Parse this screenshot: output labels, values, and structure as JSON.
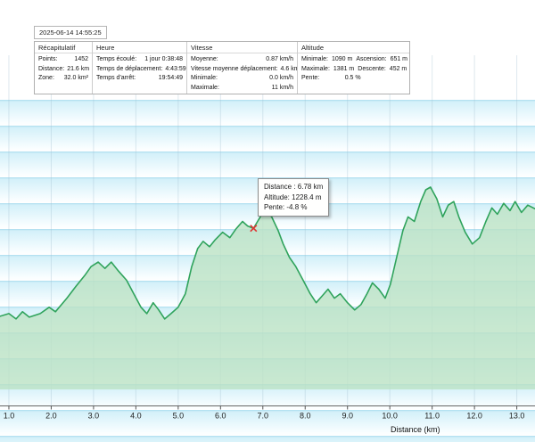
{
  "header": {
    "timestamp": "2025-06-14 14:55:25"
  },
  "panel": {
    "sections": [
      {
        "title": "Récapitulatif",
        "rows": [
          [
            "Points:",
            "1452"
          ],
          [
            "Distance:",
            "21.6 km"
          ],
          [
            "Zone:",
            "32.0 km²"
          ]
        ]
      },
      {
        "title": "Heure",
        "rows": [
          [
            "Temps écoulé:",
            "1 jour 0:38:48"
          ],
          [
            "Temps de déplacement:",
            "4:43:59"
          ],
          [
            "Temps d'arrêt:",
            "19:54:49"
          ]
        ]
      },
      {
        "title": "Vitesse",
        "rows": [
          [
            "Moyenne:",
            "0.87 km/h"
          ],
          [
            "Vitesse moyenne déplacement:",
            "4.6 km/h"
          ],
          [
            "Minimale:",
            "0.0 km/h"
          ],
          [
            "Maximale:",
            "11 km/h"
          ]
        ]
      },
      {
        "title": "Altitude",
        "rows": [
          [
            "Minimale:",
            "1090 m",
            "Ascension:",
            "651 m"
          ],
          [
            "Maximale:",
            "1381 m",
            "Descente:",
            "452 m"
          ],
          [
            "Pente:",
            "0.5 %",
            "",
            ""
          ]
        ]
      }
    ]
  },
  "tooltip": {
    "distance": "Distance : 6.78 km",
    "altitude": "Altitude: 1228.4 m",
    "slope": "Pente: -4.8 %",
    "marker_color": "#e03232"
  },
  "chart_data": {
    "type": "area",
    "title": "",
    "xlabel": "Distance  (km)",
    "ylabel": "",
    "x_ticks": [
      "1.0",
      "2.0",
      "3.0",
      "4.0",
      "5.0",
      "6.0",
      "7.0",
      "8.0",
      "9.0",
      "10.0",
      "11.0",
      "12.0",
      "13.0"
    ],
    "xlim": [
      0.79,
      13.43
    ],
    "ylim": [
      1050,
      1420
    ],
    "grid": true,
    "legend": "none",
    "line_color": "#2fa35c",
    "fill_color": "rgba(187,226,196,0.8)",
    "grid_color": "rgba(160,190,205,0.35)",
    "axis_color": "#666666",
    "marker": {
      "x": 6.78,
      "y": 1228.4
    },
    "series": [
      {
        "name": "Altitude (m)",
        "x": [
          0.79,
          1.0,
          1.17,
          1.32,
          1.48,
          1.74,
          1.95,
          2.1,
          2.37,
          2.58,
          2.79,
          2.94,
          3.11,
          3.27,
          3.42,
          3.59,
          3.78,
          3.95,
          4.12,
          4.26,
          4.41,
          4.54,
          4.68,
          4.83,
          5.0,
          5.17,
          5.32,
          5.46,
          5.59,
          5.74,
          5.88,
          6.05,
          6.22,
          6.37,
          6.52,
          6.64,
          6.78,
          6.94,
          7.06,
          7.21,
          7.36,
          7.48,
          7.63,
          7.78,
          7.95,
          8.12,
          8.26,
          8.41,
          8.54,
          8.69,
          8.83,
          9.0,
          9.17,
          9.32,
          9.46,
          9.59,
          9.74,
          9.89,
          10.01,
          10.16,
          10.31,
          10.43,
          10.58,
          10.73,
          10.85,
          10.96,
          11.11,
          11.25,
          11.38,
          11.51,
          11.63,
          11.78,
          11.95,
          12.12,
          12.27,
          12.41,
          12.54,
          12.69,
          12.84,
          12.96,
          13.11,
          13.26,
          13.43
        ],
        "y": [
          1131,
          1134,
          1128,
          1136,
          1130,
          1134,
          1141,
          1136,
          1151,
          1164,
          1176,
          1186,
          1191,
          1184,
          1191,
          1181,
          1171,
          1156,
          1141,
          1134,
          1146,
          1138,
          1128,
          1134,
          1141,
          1156,
          1186,
          1206,
          1214,
          1208,
          1216,
          1224,
          1218,
          1228,
          1236,
          1231,
          1228.4,
          1241,
          1248,
          1241,
          1226,
          1211,
          1196,
          1186,
          1171,
          1156,
          1146,
          1154,
          1161,
          1151,
          1156,
          1146,
          1138,
          1144,
          1156,
          1168,
          1161,
          1151,
          1166,
          1196,
          1226,
          1241,
          1236,
          1258,
          1271,
          1274,
          1261,
          1241,
          1254,
          1258,
          1241,
          1224,
          1211,
          1218,
          1236,
          1251,
          1244,
          1256,
          1248,
          1258,
          1246,
          1254,
          1250
        ]
      }
    ]
  }
}
